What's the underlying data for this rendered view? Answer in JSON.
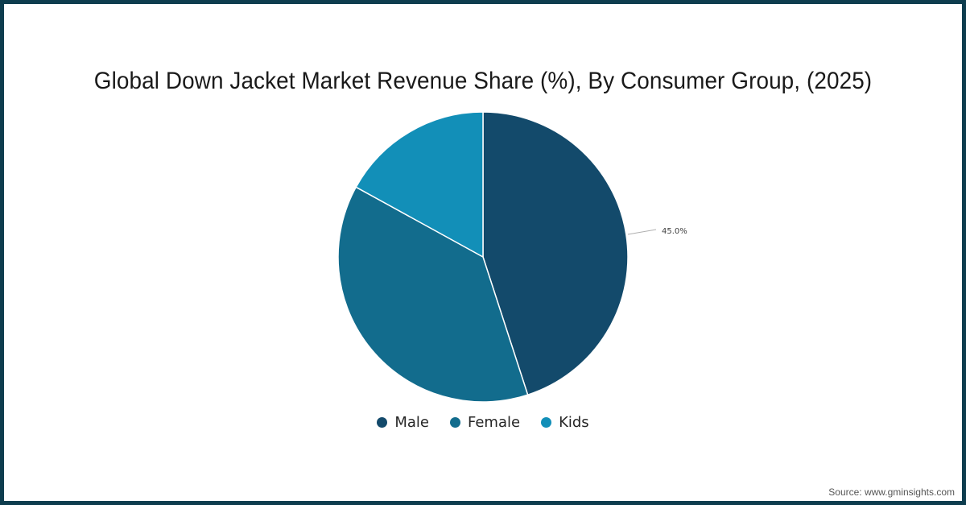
{
  "title": "Global Down Jacket Market Revenue Share (%), By Consumer Group, (2025)",
  "source": "Source: www.gminsights.com",
  "colors": {
    "frame": "#0e3d4e",
    "male": "#134a6b",
    "female": "#126c8d",
    "kids": "#128fb8"
  },
  "legend": [
    {
      "label": "Male",
      "color": "#134a6b"
    },
    {
      "label": "Female",
      "color": "#126c8d"
    },
    {
      "label": "Kids",
      "color": "#128fb8"
    }
  ],
  "chart_data": {
    "type": "pie",
    "title": "Global Down Jacket Market Revenue Share (%), By Consumer Group, (2025)",
    "categories": [
      "Male",
      "Female",
      "Kids"
    ],
    "values": [
      45.0,
      38.0,
      17.0
    ],
    "data_labels": [
      "45.0%",
      "",
      ""
    ],
    "colors": [
      "#134a6b",
      "#126c8d",
      "#128fb8"
    ],
    "start_angle": "12 o'clock, clockwise",
    "legend_position": "bottom",
    "source": "Source: www.gminsights.com"
  }
}
